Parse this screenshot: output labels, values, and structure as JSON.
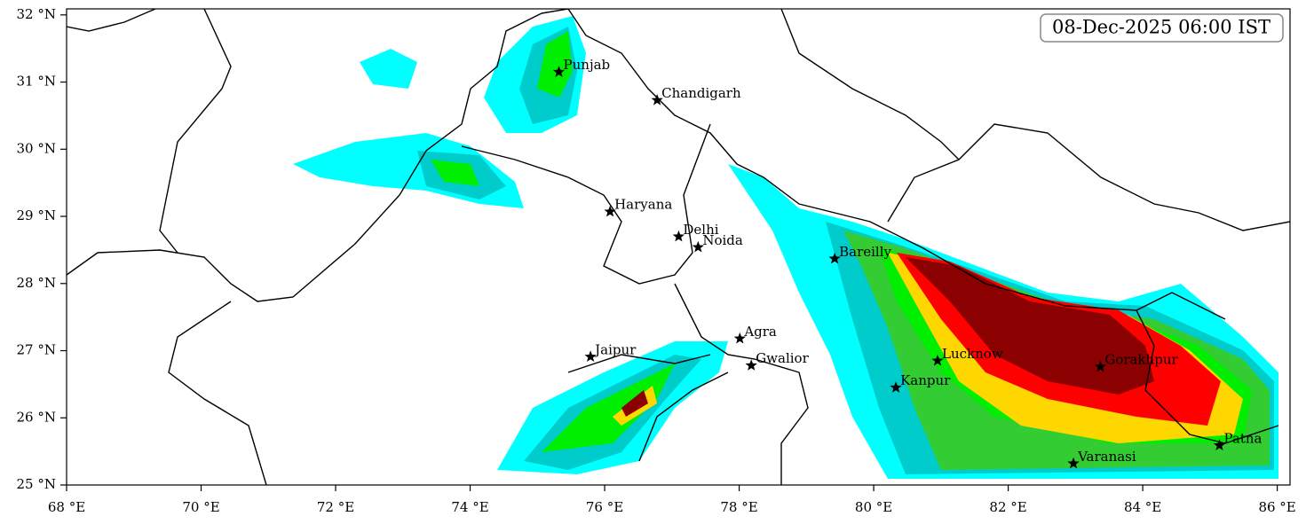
{
  "map": {
    "title": "08-Dec-2025 06:00 IST",
    "xlim": [
      68,
      86.19
    ],
    "ylim": [
      25,
      32.09
    ],
    "xticks": [
      {
        "value": 68,
        "label": "68 °E"
      },
      {
        "value": 70,
        "label": "70 °E"
      },
      {
        "value": 72,
        "label": "72 °E"
      },
      {
        "value": 74,
        "label": "74 °E"
      },
      {
        "value": 76,
        "label": "76 °E"
      },
      {
        "value": 78,
        "label": "78 °E"
      },
      {
        "value": 80,
        "label": "80 °E"
      },
      {
        "value": 82,
        "label": "82 °E"
      },
      {
        "value": 84,
        "label": "84 °E"
      },
      {
        "value": 86,
        "label": "86 °E"
      }
    ],
    "yticks": [
      {
        "value": 25,
        "label": "25 °N"
      },
      {
        "value": 26,
        "label": "26 °N"
      },
      {
        "value": 27,
        "label": "27 °N"
      },
      {
        "value": 28,
        "label": "28 °N"
      },
      {
        "value": 29,
        "label": "29 °N"
      },
      {
        "value": 30,
        "label": "30 °N"
      },
      {
        "value": 31,
        "label": "31 °N"
      },
      {
        "value": 32,
        "label": "32 °N"
      }
    ],
    "cities": [
      {
        "name": "Punjab",
        "lon": 75.32,
        "lat": 31.15
      },
      {
        "name": "Chandigarh",
        "lon": 76.78,
        "lat": 30.73
      },
      {
        "name": "Haryana",
        "lon": 76.08,
        "lat": 29.07
      },
      {
        "name": "Delhi",
        "lon": 77.1,
        "lat": 28.7
      },
      {
        "name": "Noida",
        "lon": 77.39,
        "lat": 28.54
      },
      {
        "name": "Bareilly",
        "lon": 79.42,
        "lat": 28.37
      },
      {
        "name": "Agra",
        "lon": 78.01,
        "lat": 27.18
      },
      {
        "name": "Jaipur",
        "lon": 75.79,
        "lat": 26.91
      },
      {
        "name": "Gwalior",
        "lon": 78.18,
        "lat": 26.78
      },
      {
        "name": "Lucknow",
        "lon": 80.95,
        "lat": 26.85
      },
      {
        "name": "Gorakhpur",
        "lon": 83.37,
        "lat": 26.76
      },
      {
        "name": "Kanpur",
        "lon": 80.33,
        "lat": 26.45
      },
      {
        "name": "Varanasi",
        "lon": 82.97,
        "lat": 25.32
      },
      {
        "name": "Patna",
        "lon": 85.14,
        "lat": 25.59
      }
    ]
  }
}
